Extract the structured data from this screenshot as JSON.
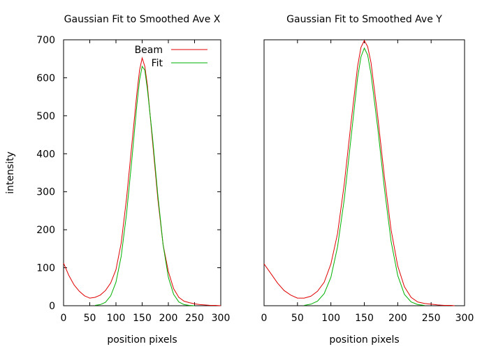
{
  "chart_data": [
    {
      "type": "line",
      "title": "Gaussian Fit to Smoothed Ave X",
      "xlabel": "position pixels",
      "ylabel": "intensity",
      "xlim": [
        0,
        300
      ],
      "ylim": [
        0,
        700
      ],
      "xticks": [
        "0",
        "50",
        "100",
        "150",
        "200",
        "250",
        "300"
      ],
      "yticks": [
        "0",
        "100",
        "200",
        "300",
        "400",
        "500",
        "600",
        "700"
      ],
      "legend_position": "top-right",
      "series": [
        {
          "name": "Beam",
          "color": "#e00000",
          "x": [
            0,
            10,
            20,
            30,
            40,
            50,
            60,
            70,
            80,
            90,
            100,
            110,
            120,
            130,
            140,
            145,
            150,
            155,
            160,
            170,
            180,
            190,
            200,
            210,
            220,
            230,
            240,
            250,
            260,
            270,
            280,
            290,
            300
          ],
          "y": [
            112,
            80,
            55,
            38,
            26,
            20,
            22,
            28,
            40,
            60,
            95,
            165,
            280,
            420,
            560,
            620,
            652,
            630,
            580,
            430,
            280,
            160,
            90,
            45,
            22,
            12,
            8,
            5,
            3,
            2,
            1,
            1,
            0
          ]
        },
        {
          "name": "Fit",
          "color": "#00b000",
          "x": [
            60,
            70,
            80,
            90,
            100,
            110,
            120,
            130,
            140,
            145,
            150,
            155,
            160,
            170,
            180,
            190,
            200,
            210,
            220,
            230,
            240,
            250
          ],
          "y": [
            1,
            3,
            9,
            26,
            62,
            130,
            240,
            380,
            530,
            595,
            630,
            620,
            570,
            440,
            290,
            160,
            75,
            30,
            10,
            3,
            1,
            0
          ]
        }
      ]
    },
    {
      "type": "line",
      "title": "Gaussian Fit to Smoothed Ave Y",
      "xlabel": "position pixels",
      "ylabel": "",
      "xlim": [
        0,
        300
      ],
      "ylim": [
        0,
        700
      ],
      "xticks": [
        "0",
        "50",
        "100",
        "150",
        "200",
        "250",
        "300"
      ],
      "series": [
        {
          "color": "#e00000",
          "x": [
            0,
            10,
            20,
            30,
            40,
            50,
            60,
            70,
            80,
            90,
            100,
            110,
            120,
            130,
            140,
            145,
            150,
            155,
            160,
            170,
            180,
            190,
            200,
            210,
            220,
            230,
            240,
            250,
            260,
            270,
            280,
            285
          ],
          "y": [
            110,
            85,
            60,
            40,
            28,
            20,
            20,
            25,
            38,
            62,
            110,
            190,
            320,
            480,
            630,
            680,
            698,
            682,
            640,
            500,
            340,
            200,
            105,
            50,
            22,
            10,
            6,
            4,
            2,
            1,
            1,
            0
          ]
        },
        {
          "color": "#00b000",
          "x": [
            60,
            70,
            80,
            90,
            100,
            110,
            120,
            130,
            140,
            145,
            150,
            155,
            160,
            170,
            180,
            190,
            200,
            210,
            220,
            230,
            240
          ],
          "y": [
            1,
            4,
            12,
            32,
            75,
            155,
            280,
            440,
            600,
            655,
            678,
            660,
            610,
            470,
            310,
            170,
            80,
            30,
            10,
            3,
            1
          ]
        }
      ]
    }
  ]
}
